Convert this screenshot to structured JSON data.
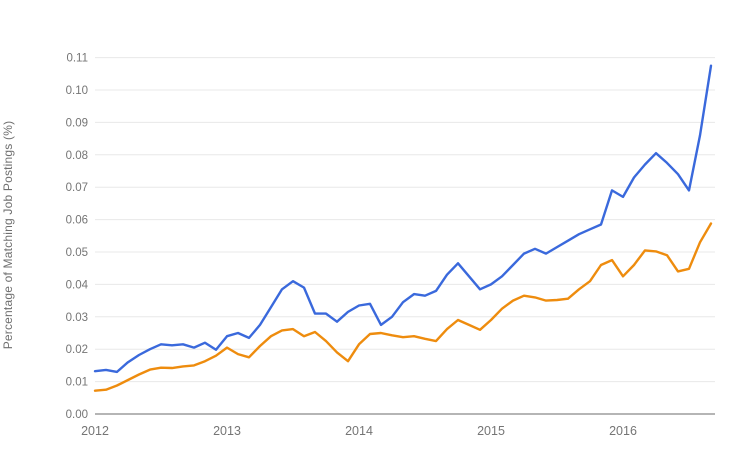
{
  "chart_data": {
    "type": "line",
    "title": "",
    "xlabel": "",
    "ylabel": "Percentage of Matching Job Postings (%)",
    "x_tick_labels": [
      "2012",
      "2013",
      "2014",
      "2015",
      "2016"
    ],
    "y_tick_labels": [
      "0.00",
      "0.01",
      "0.02",
      "0.03",
      "0.04",
      "0.05",
      "0.06",
      "0.07",
      "0.08",
      "0.09",
      "0.10",
      "0.11"
    ],
    "ylim": [
      0,
      0.11
    ],
    "grid": "horizontal-only",
    "legend": "none",
    "x": [
      "2012-01",
      "2012-02",
      "2012-03",
      "2012-04",
      "2012-05",
      "2012-06",
      "2012-07",
      "2012-08",
      "2012-09",
      "2012-10",
      "2012-11",
      "2012-12",
      "2013-01",
      "2013-02",
      "2013-03",
      "2013-04",
      "2013-05",
      "2013-06",
      "2013-07",
      "2013-08",
      "2013-09",
      "2013-10",
      "2013-11",
      "2013-12",
      "2014-01",
      "2014-02",
      "2014-03",
      "2014-04",
      "2014-05",
      "2014-06",
      "2014-07",
      "2014-08",
      "2014-09",
      "2014-10",
      "2014-11",
      "2014-12",
      "2015-01",
      "2015-02",
      "2015-03",
      "2015-04",
      "2015-05",
      "2015-06",
      "2015-07",
      "2015-08",
      "2015-09",
      "2015-10",
      "2015-11",
      "2015-12",
      "2016-01",
      "2016-02",
      "2016-03",
      "2016-04",
      "2016-05",
      "2016-06",
      "2016-07",
      "2016-08",
      "2016-09"
    ],
    "series": [
      {
        "name": "series-blue",
        "color": "#3a69dc",
        "values": [
          0.0132,
          0.0136,
          0.013,
          0.016,
          0.0182,
          0.02,
          0.0215,
          0.0212,
          0.0215,
          0.0205,
          0.022,
          0.0198,
          0.024,
          0.025,
          0.0235,
          0.0275,
          0.033,
          0.0385,
          0.041,
          0.039,
          0.031,
          0.031,
          0.0285,
          0.0315,
          0.0335,
          0.034,
          0.0275,
          0.03,
          0.0345,
          0.037,
          0.0365,
          0.038,
          0.043,
          0.0465,
          0.0425,
          0.0385,
          0.04,
          0.0425,
          0.046,
          0.0495,
          0.051,
          0.0495,
          0.0515,
          0.0535,
          0.0555,
          0.057,
          0.0585,
          0.069,
          0.067,
          0.073,
          0.077,
          0.0805,
          0.0775,
          0.074,
          0.069,
          0.086,
          0.1075
        ]
      },
      {
        "name": "series-orange",
        "color": "#ee8c0e",
        "values": [
          0.0072,
          0.0075,
          0.0088,
          0.0105,
          0.0122,
          0.0137,
          0.0143,
          0.0142,
          0.0147,
          0.015,
          0.0163,
          0.018,
          0.0205,
          0.0185,
          0.0175,
          0.021,
          0.024,
          0.0258,
          0.0262,
          0.024,
          0.0253,
          0.0225,
          0.019,
          0.0163,
          0.0215,
          0.0247,
          0.025,
          0.0243,
          0.0237,
          0.024,
          0.0232,
          0.0225,
          0.0262,
          0.029,
          0.0275,
          0.026,
          0.029,
          0.0325,
          0.035,
          0.0365,
          0.036,
          0.035,
          0.0352,
          0.0356,
          0.0385,
          0.041,
          0.046,
          0.0475,
          0.0425,
          0.046,
          0.0505,
          0.0502,
          0.049,
          0.044,
          0.0448,
          0.053,
          0.0588
        ]
      }
    ],
    "colors": {
      "gridline": "#e8e8e8",
      "axis_line": "#b5b5b5",
      "tick_label": "#757575",
      "axis_title": "#6f6f6f",
      "background": "#ffffff"
    }
  }
}
